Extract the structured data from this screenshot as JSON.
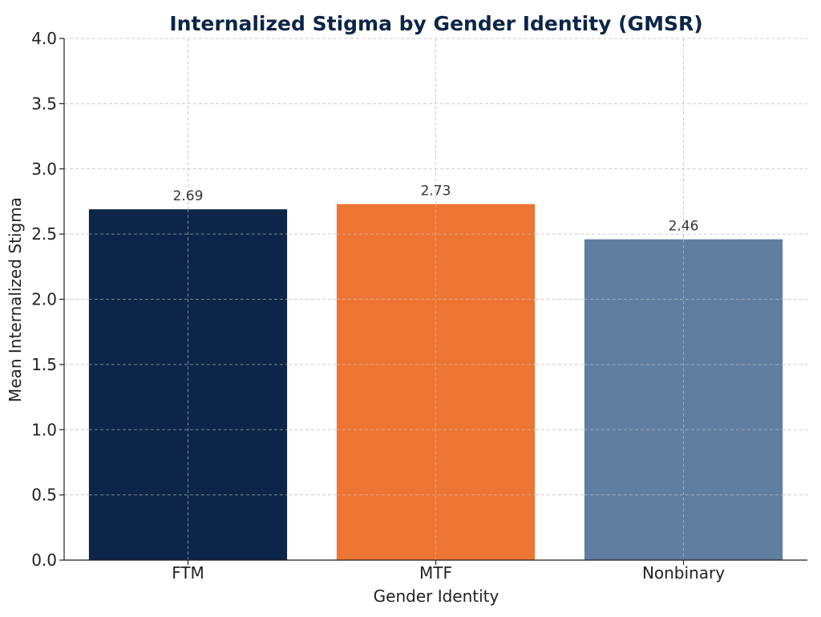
{
  "chart_data": {
    "type": "bar",
    "title": "Internalized Stigma by Gender Identity (GMSR)",
    "xlabel": "Gender Identity",
    "ylabel": "Mean Internalized Stigma",
    "categories": [
      "FTM",
      "MTF",
      "Nonbinary"
    ],
    "values": [
      2.69,
      2.73,
      2.46
    ],
    "data_labels": [
      "2.69",
      "2.73",
      "2.46"
    ],
    "bar_colors": [
      "#0c2548",
      "#ed7533",
      "#607ea0"
    ],
    "ylim": [
      0,
      4.0
    ],
    "yticks": [
      "0.0",
      "0.5",
      "1.0",
      "1.5",
      "2.0",
      "2.5",
      "3.0",
      "3.5",
      "4.0"
    ],
    "grid": true,
    "title_color": "#0c2548"
  }
}
